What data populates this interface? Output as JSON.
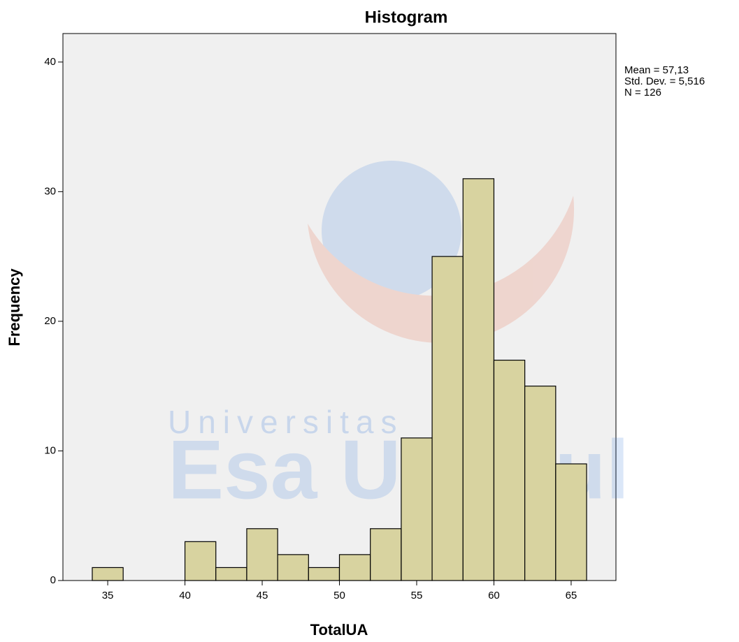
{
  "chart_data": {
    "type": "histogram",
    "title": "Histogram",
    "x_label": "TotalUA",
    "y_label": "Frequency",
    "bins": [
      34,
      36,
      38,
      40,
      42,
      44,
      46,
      48,
      50,
      52,
      54,
      56,
      58,
      60,
      62,
      64,
      66
    ],
    "values": [
      1,
      0,
      0,
      3,
      1,
      4,
      2,
      1,
      2,
      4,
      11,
      25,
      31,
      17,
      15,
      9
    ],
    "color": "#d8d3a0",
    "xlim": [
      32.1,
      67.9
    ],
    "xticks": [
      35,
      40,
      45,
      50,
      55,
      60,
      65
    ],
    "ylim": [
      0,
      42.2
    ],
    "yticks": [
      0,
      10,
      20,
      30,
      40
    ],
    "annotations": [
      "Mean = 57,13",
      "Std. Dev. = 5,516",
      "N = 126"
    ],
    "watermark": [
      "Universitas",
      "Esa Unggul"
    ]
  }
}
